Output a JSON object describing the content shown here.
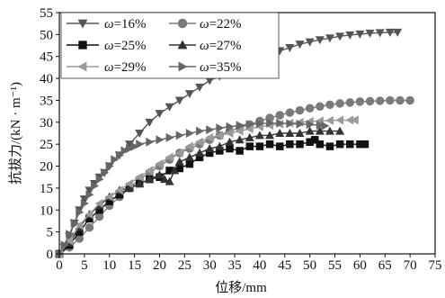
{
  "chart_data": {
    "type": "line",
    "title": "",
    "xlabel": "位移/mm",
    "ylabel": "抗拔力/(kN · m⁻¹)",
    "xlim": [
      0,
      75
    ],
    "ylim": [
      0,
      55
    ],
    "xticks": [
      0,
      5,
      10,
      15,
      20,
      25,
      30,
      35,
      40,
      45,
      50,
      55,
      60,
      65,
      70,
      75
    ],
    "yticks": [
      0,
      5,
      10,
      15,
      20,
      25,
      30,
      35,
      40,
      45,
      50,
      55
    ],
    "grid": false,
    "legend_position": "top-left",
    "series": [
      {
        "name": "ω=16%",
        "marker": "triangle-down",
        "color": "#555555",
        "x": [
          0,
          1,
          2,
          3,
          4,
          5,
          6,
          7,
          8,
          9,
          10,
          12,
          14,
          16,
          18,
          20,
          22,
          24,
          26,
          28,
          30,
          32,
          34,
          36,
          38,
          40,
          42,
          44,
          46,
          48,
          50,
          52,
          54,
          56,
          58,
          60,
          62,
          64,
          66,
          67.5
        ],
        "y": [
          0,
          1.5,
          4,
          7,
          10,
          12.5,
          14.5,
          16,
          17.5,
          18.5,
          20,
          22.5,
          25,
          27.5,
          30,
          32,
          33.5,
          35,
          36.5,
          38,
          39.5,
          40.5,
          41.5,
          42.5,
          43.5,
          44.5,
          45.5,
          46.3,
          47,
          47.8,
          48.3,
          48.8,
          49.2,
          49.6,
          49.9,
          50.1,
          50.3,
          50.4,
          50.5,
          50.5
        ]
      },
      {
        "name": "ω=22%",
        "marker": "circle",
        "color": "#7a7a7a",
        "x": [
          0,
          2,
          4,
          6,
          8,
          10,
          12,
          14,
          16,
          18,
          20,
          22,
          24,
          26,
          28,
          30,
          32,
          34,
          36,
          38,
          40,
          42,
          44,
          46,
          48,
          50,
          52,
          54,
          56,
          58,
          60,
          62,
          64,
          66,
          68,
          70
        ],
        "y": [
          0,
          1.5,
          3.5,
          6,
          8.5,
          11,
          13,
          15,
          17,
          18.5,
          20,
          21.5,
          23,
          24,
          25,
          26,
          27,
          28,
          28.8,
          29.5,
          30.3,
          31,
          31.6,
          32.2,
          32.7,
          33.2,
          33.6,
          34,
          34.3,
          34.5,
          34.7,
          34.8,
          34.9,
          35,
          35,
          35
        ]
      },
      {
        "name": "ω=25%",
        "marker": "square",
        "color": "#111111",
        "x": [
          0,
          2,
          4,
          6,
          8,
          10,
          12,
          14,
          16,
          18,
          20,
          22,
          24,
          26,
          28,
          30,
          32,
          34,
          36,
          38,
          40,
          42,
          44,
          46,
          48,
          50,
          51,
          52,
          54,
          56,
          58,
          60,
          61
        ],
        "y": [
          0,
          2,
          5,
          8,
          10,
          12,
          13.5,
          15,
          16,
          17,
          17.5,
          19,
          19.5,
          20.5,
          22,
          23,
          23.5,
          24,
          23.5,
          24.5,
          24.5,
          25,
          24.5,
          25,
          25,
          25.5,
          26,
          25,
          24.5,
          25,
          25,
          25,
          25
        ]
      },
      {
        "name": "ω=27%",
        "marker": "triangle-up",
        "color": "#333333",
        "x": [
          0,
          2,
          4,
          6,
          8,
          10,
          12,
          14,
          16,
          18,
          20,
          21,
          22,
          23,
          24,
          26,
          28,
          30,
          32,
          34,
          36,
          38,
          40,
          42,
          44,
          46,
          48,
          50,
          52,
          54,
          56
        ],
        "y": [
          0,
          2.5,
          6,
          9,
          11,
          13,
          14.5,
          15,
          16,
          17,
          18,
          17,
          16.5,
          19,
          21,
          22,
          23,
          24,
          24.5,
          25.5,
          26,
          26.5,
          27,
          27,
          27.5,
          27.5,
          27.5,
          28,
          28,
          28,
          28
        ]
      },
      {
        "name": "ω=29%",
        "marker": "triangle-left",
        "color": "#9a9a9a",
        "x": [
          0,
          2,
          4,
          6,
          8,
          10,
          12,
          14,
          16,
          18,
          20,
          22,
          24,
          26,
          28,
          30,
          32,
          34,
          36,
          38,
          40,
          42,
          44,
          46,
          48,
          50,
          52,
          54,
          56,
          58,
          59
        ],
        "y": [
          0,
          3,
          6.5,
          9,
          11.5,
          13,
          14.5,
          16,
          17.5,
          19,
          20.5,
          22,
          23,
          24.5,
          25.5,
          26.5,
          27,
          27.5,
          28,
          28.5,
          29,
          29.3,
          29.6,
          29.8,
          30,
          30.2,
          30.3,
          30.4,
          30.5,
          30.5,
          30.5
        ]
      },
      {
        "name": "ω=35%",
        "marker": "triangle-right",
        "color": "#666666",
        "x": [
          0,
          1,
          2,
          3,
          4,
          5,
          6,
          7,
          8,
          9,
          10,
          11,
          12,
          13,
          14,
          15,
          16,
          18,
          20,
          22,
          24,
          26,
          28,
          30,
          32,
          34,
          36,
          38,
          40,
          42,
          44,
          46,
          48,
          50,
          52,
          53
        ],
        "y": [
          0,
          2,
          4.5,
          7,
          9.5,
          11.5,
          13.5,
          15.5,
          17,
          18.5,
          20,
          21.5,
          22.5,
          23.5,
          24,
          24.5,
          25,
          25.5,
          26,
          26.5,
          27,
          27.5,
          28,
          28.3,
          28.7,
          29,
          29.3,
          29.5,
          29.7,
          29.8,
          29.8,
          29.7,
          29.6,
          29.5,
          29.3,
          29.2
        ]
      }
    ]
  }
}
